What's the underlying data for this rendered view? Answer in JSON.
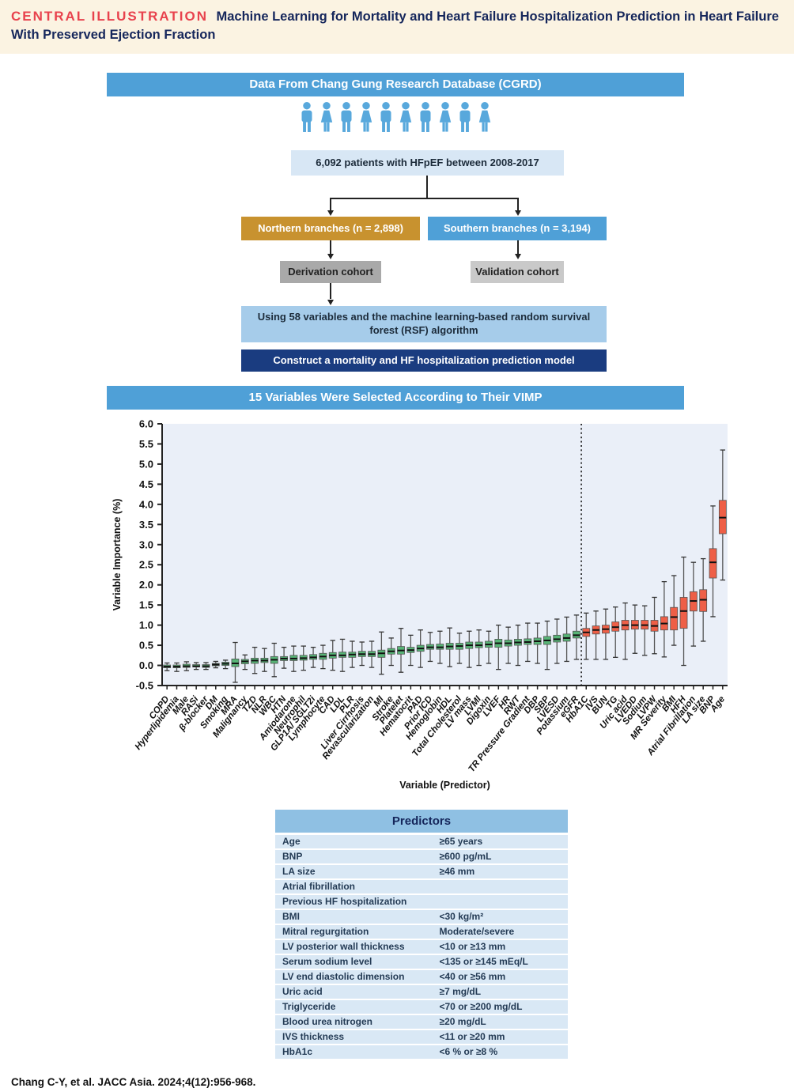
{
  "header": {
    "label": "CENTRAL ILLUSTRATION",
    "title": "Machine Learning for Mortality and Heart Failure Hospitalization Prediction in Heart Failure With Preserved Ejection Fraction"
  },
  "flowchart": {
    "source_title": "Data From Chang Gung Research Database (CGRD)",
    "people_icons": {
      "count": 10,
      "pattern": [
        "male",
        "female",
        "male",
        "female",
        "male",
        "female",
        "male",
        "female",
        "male",
        "female"
      ]
    },
    "patients_box": "6,092 patients with HFpEF between 2008-2017",
    "northern_box": "Northern branches (n = 2,898)",
    "southern_box": "Southern branches (n = 3,194)",
    "derivation_box": "Derivation cohort",
    "validation_box": "Validation cohort",
    "method_box": "Using 58 variables and the machine learning-based random survival forest (RSF) algorithm",
    "model_box": "Construct a mortality and HF hospitalization prediction model"
  },
  "chart_header": "15 Variables Were Selected According to Their VIMP",
  "chart_data": {
    "type": "boxplot",
    "title": "15 Variables Were Selected According to Their VIMP",
    "xlabel": "Variable (Predictor)",
    "ylabel": "Variable Importance (%)",
    "ylim": [
      -0.5,
      6.0
    ],
    "ytick_step": 0.5,
    "grid": false,
    "separator_after_index": 42,
    "unselected_color": "#57b476",
    "selected_color": "#ee5f47",
    "series": [
      {
        "name": "COPD",
        "lo": -0.13,
        "q1": -0.06,
        "med": -0.03,
        "q3": 0.01,
        "hi": 0.06,
        "selected": false
      },
      {
        "name": "Hyperlipidemia",
        "lo": -0.15,
        "q1": -0.06,
        "med": -0.03,
        "q3": 0.01,
        "hi": 0.06,
        "selected": false
      },
      {
        "name": "Male",
        "lo": -0.13,
        "q1": -0.05,
        "med": -0.02,
        "q3": 0.03,
        "hi": 0.09,
        "selected": false
      },
      {
        "name": "RASi",
        "lo": -0.1,
        "q1": -0.04,
        "med": -0.02,
        "q3": 0.02,
        "hi": 0.07,
        "selected": false
      },
      {
        "name": "β-blocker",
        "lo": -0.1,
        "q1": -0.05,
        "med": -0.02,
        "q3": 0.02,
        "hi": 0.07,
        "selected": false
      },
      {
        "name": "DM",
        "lo": -0.06,
        "q1": -0.01,
        "med": 0.02,
        "q3": 0.05,
        "hi": 0.1,
        "selected": false
      },
      {
        "name": "Smoking",
        "lo": -0.08,
        "q1": 0.0,
        "med": 0.04,
        "q3": 0.08,
        "hi": 0.13,
        "selected": false
      },
      {
        "name": "MRA",
        "lo": -0.42,
        "q1": -0.03,
        "med": 0.05,
        "q3": 0.16,
        "hi": 0.57,
        "selected": false
      },
      {
        "name": "Malignancy",
        "lo": -0.1,
        "q1": 0.04,
        "med": 0.1,
        "q3": 0.15,
        "hi": 0.26,
        "selected": false
      },
      {
        "name": "TZD",
        "lo": -0.2,
        "q1": 0.05,
        "med": 0.12,
        "q3": 0.18,
        "hi": 0.45,
        "selected": false
      },
      {
        "name": "NLR",
        "lo": -0.15,
        "q1": 0.07,
        "med": 0.12,
        "q3": 0.18,
        "hi": 0.42,
        "selected": false
      },
      {
        "name": "WBC",
        "lo": -0.28,
        "q1": 0.05,
        "med": 0.14,
        "q3": 0.22,
        "hi": 0.55,
        "selected": false
      },
      {
        "name": "HTN",
        "lo": -0.07,
        "q1": 0.12,
        "med": 0.17,
        "q3": 0.22,
        "hi": 0.45,
        "selected": false
      },
      {
        "name": "Amiodarone",
        "lo": -0.15,
        "q1": 0.12,
        "med": 0.17,
        "q3": 0.25,
        "hi": 0.48,
        "selected": false
      },
      {
        "name": "Neutrophil",
        "lo": -0.12,
        "q1": 0.13,
        "med": 0.18,
        "q3": 0.25,
        "hi": 0.48,
        "selected": false
      },
      {
        "name": "GLP1A/ SGLT2i",
        "lo": -0.05,
        "q1": 0.15,
        "med": 0.2,
        "q3": 0.27,
        "hi": 0.45,
        "selected": false
      },
      {
        "name": "Lymphocyte",
        "lo": -0.08,
        "q1": 0.15,
        "med": 0.22,
        "q3": 0.3,
        "hi": 0.5,
        "selected": false
      },
      {
        "name": "CAD",
        "lo": -0.12,
        "q1": 0.18,
        "med": 0.25,
        "q3": 0.32,
        "hi": 0.62,
        "selected": false
      },
      {
        "name": "LDL",
        "lo": -0.15,
        "q1": 0.2,
        "med": 0.25,
        "q3": 0.33,
        "hi": 0.65,
        "selected": false
      },
      {
        "name": "PLR",
        "lo": -0.05,
        "q1": 0.2,
        "med": 0.27,
        "q3": 0.33,
        "hi": 0.6,
        "selected": false
      },
      {
        "name": "Liver Cirrhosis",
        "lo": 0.0,
        "q1": 0.22,
        "med": 0.28,
        "q3": 0.35,
        "hi": 0.58,
        "selected": false
      },
      {
        "name": "Revascularization",
        "lo": -0.05,
        "q1": 0.22,
        "med": 0.28,
        "q3": 0.35,
        "hi": 0.6,
        "selected": false
      },
      {
        "name": "MI",
        "lo": -0.22,
        "q1": 0.2,
        "med": 0.3,
        "q3": 0.38,
        "hi": 0.83,
        "selected": false
      },
      {
        "name": "Stroke",
        "lo": 0.0,
        "q1": 0.28,
        "med": 0.35,
        "q3": 0.42,
        "hi": 0.68,
        "selected": false
      },
      {
        "name": "Platelet",
        "lo": -0.17,
        "q1": 0.28,
        "med": 0.37,
        "q3": 0.47,
        "hi": 0.92,
        "selected": false
      },
      {
        "name": "Hematocrit",
        "lo": 0.0,
        "q1": 0.32,
        "med": 0.38,
        "q3": 0.45,
        "hi": 0.75,
        "selected": false
      },
      {
        "name": "PAD",
        "lo": -0.05,
        "q1": 0.35,
        "med": 0.42,
        "q3": 0.5,
        "hi": 0.88,
        "selected": false
      },
      {
        "name": "Prior ICD",
        "lo": 0.1,
        "q1": 0.4,
        "med": 0.45,
        "q3": 0.52,
        "hi": 0.82,
        "selected": false
      },
      {
        "name": "Hemoglobin",
        "lo": 0.05,
        "q1": 0.4,
        "med": 0.45,
        "q3": 0.53,
        "hi": 0.85,
        "selected": false
      },
      {
        "name": "HDL",
        "lo": -0.03,
        "q1": 0.4,
        "med": 0.47,
        "q3": 0.55,
        "hi": 0.93,
        "selected": false
      },
      {
        "name": "Total Cholesterol",
        "lo": 0.05,
        "q1": 0.4,
        "med": 0.48,
        "q3": 0.55,
        "hi": 0.8,
        "selected": false
      },
      {
        "name": "LV mass",
        "lo": -0.05,
        "q1": 0.42,
        "med": 0.5,
        "q3": 0.58,
        "hi": 0.85,
        "selected": false
      },
      {
        "name": "LVMI",
        "lo": 0.0,
        "q1": 0.44,
        "med": 0.5,
        "q3": 0.58,
        "hi": 0.88,
        "selected": false
      },
      {
        "name": "Digoxin",
        "lo": 0.05,
        "q1": 0.45,
        "med": 0.52,
        "q3": 0.6,
        "hi": 0.85,
        "selected": false
      },
      {
        "name": "LVEF",
        "lo": -0.1,
        "q1": 0.45,
        "med": 0.55,
        "q3": 0.65,
        "hi": 1.0,
        "selected": false
      },
      {
        "name": "HR",
        "lo": 0.05,
        "q1": 0.48,
        "med": 0.55,
        "q3": 0.63,
        "hi": 0.95,
        "selected": false
      },
      {
        "name": "RWT",
        "lo": 0.0,
        "q1": 0.5,
        "med": 0.57,
        "q3": 0.65,
        "hi": 1.0,
        "selected": false
      },
      {
        "name": "TR Pressure Gradient",
        "lo": 0.1,
        "q1": 0.52,
        "med": 0.58,
        "q3": 0.66,
        "hi": 1.05,
        "selected": false
      },
      {
        "name": "DBP",
        "lo": 0.05,
        "q1": 0.52,
        "med": 0.6,
        "q3": 0.68,
        "hi": 1.05,
        "selected": false
      },
      {
        "name": "SBP",
        "lo": -0.1,
        "q1": 0.52,
        "med": 0.62,
        "q3": 0.72,
        "hi": 1.1,
        "selected": false
      },
      {
        "name": "LVESD",
        "lo": 0.05,
        "q1": 0.58,
        "med": 0.65,
        "q3": 0.75,
        "hi": 1.15,
        "selected": false
      },
      {
        "name": "Potassium",
        "lo": 0.1,
        "q1": 0.6,
        "med": 0.68,
        "q3": 0.78,
        "hi": 1.2,
        "selected": false
      },
      {
        "name": "eGFR",
        "lo": 0.15,
        "q1": 0.68,
        "med": 0.75,
        "q3": 0.85,
        "hi": 1.25,
        "selected": false
      },
      {
        "name": "HbA1C",
        "lo": 0.15,
        "q1": 0.72,
        "med": 0.82,
        "q3": 0.92,
        "hi": 1.3,
        "selected": true
      },
      {
        "name": "IVS",
        "lo": 0.15,
        "q1": 0.78,
        "med": 0.88,
        "q3": 0.98,
        "hi": 1.35,
        "selected": true
      },
      {
        "name": "BUN",
        "lo": 0.15,
        "q1": 0.8,
        "med": 0.9,
        "q3": 1.0,
        "hi": 1.4,
        "selected": true
      },
      {
        "name": "TG",
        "lo": 0.2,
        "q1": 0.85,
        "med": 0.95,
        "q3": 1.08,
        "hi": 1.45,
        "selected": true
      },
      {
        "name": "Uric acid",
        "lo": 0.15,
        "q1": 0.88,
        "med": 1.0,
        "q3": 1.12,
        "hi": 1.55,
        "selected": true
      },
      {
        "name": "LVEDD",
        "lo": 0.3,
        "q1": 0.9,
        "med": 1.0,
        "q3": 1.12,
        "hi": 1.5,
        "selected": true
      },
      {
        "name": "Sodium",
        "lo": 0.25,
        "q1": 0.9,
        "med": 1.0,
        "q3": 1.12,
        "hi": 1.48,
        "selected": true
      },
      {
        "name": "LVPW",
        "lo": 0.29,
        "q1": 0.85,
        "med": 0.98,
        "q3": 1.12,
        "hi": 1.69,
        "selected": true
      },
      {
        "name": "MR Severity",
        "lo": 0.21,
        "q1": 0.88,
        "med": 1.04,
        "q3": 1.21,
        "hi": 2.08,
        "selected": true
      },
      {
        "name": "BMI",
        "lo": 0.5,
        "q1": 0.88,
        "med": 1.2,
        "q3": 1.44,
        "hi": 2.23,
        "selected": true
      },
      {
        "name": "HFH",
        "lo": 0.0,
        "q1": 0.92,
        "med": 1.35,
        "q3": 1.69,
        "hi": 2.69,
        "selected": true
      },
      {
        "name": "Atrial Fibrillation",
        "lo": 0.48,
        "q1": 1.35,
        "med": 1.6,
        "q3": 1.83,
        "hi": 2.56,
        "selected": true
      },
      {
        "name": "LA size",
        "lo": 0.6,
        "q1": 1.34,
        "med": 1.63,
        "q3": 1.88,
        "hi": 2.65,
        "selected": true
      },
      {
        "name": "BNP",
        "lo": 1.21,
        "q1": 2.17,
        "med": 2.56,
        "q3": 2.9,
        "hi": 3.96,
        "selected": true
      },
      {
        "name": "Age",
        "lo": 2.12,
        "q1": 3.27,
        "med": 3.67,
        "q3": 4.1,
        "hi": 5.35,
        "selected": true
      }
    ]
  },
  "table": {
    "title": "Predictors",
    "rows": [
      {
        "predictor": "Age",
        "cutoff": "≥65 years"
      },
      {
        "predictor": "BNP",
        "cutoff": "≥600 pg/mL"
      },
      {
        "predictor": "LA size",
        "cutoff": "≥46 mm"
      },
      {
        "predictor": "Atrial fibrillation",
        "cutoff": ""
      },
      {
        "predictor": "Previous HF hospitalization",
        "cutoff": ""
      },
      {
        "predictor": "BMI",
        "cutoff": "<30 kg/m²"
      },
      {
        "predictor": "Mitral regurgitation",
        "cutoff": "Moderate/severe"
      },
      {
        "predictor": "LV posterior wall thickness",
        "cutoff": "<10 or ≥13 mm"
      },
      {
        "predictor": "Serum sodium level",
        "cutoff": "<135 or ≥145 mEq/L"
      },
      {
        "predictor": "LV end diastolic dimension",
        "cutoff": "<40 or ≥56 mm"
      },
      {
        "predictor": "Uric acid",
        "cutoff": "≥7 mg/dL"
      },
      {
        "predictor": "Triglyceride",
        "cutoff": "<70 or ≥200 mg/dL"
      },
      {
        "predictor": "Blood urea nitrogen",
        "cutoff": "≥20 mg/dL"
      },
      {
        "predictor": "IVS thickness",
        "cutoff": "<11 or ≥20 mm"
      },
      {
        "predictor": "HbA1c",
        "cutoff": "<6 % or ≥8 %"
      }
    ]
  },
  "citation": "Chang C-Y, et al. JACC Asia. 2024;4(12):956-968.",
  "colors": {
    "banner_bg": "#fbf3e2",
    "banner_label": "#e8424d",
    "banner_title": "#15265b",
    "blue_bar": "#4fa0d7",
    "people": "#58a8dc",
    "patients_box_bg": "#d8e7f5",
    "northern_bg": "#c8922f",
    "southern_bg": "#4fa0d7",
    "derivation_bg": "#a9a9a9",
    "validation_bg": "#c9c9c9",
    "method_bg": "#a6ccea",
    "model_bg": "#1a3c80",
    "chart_bg": "#eaeff8",
    "box_green": "#57b476",
    "box_red": "#ee5f47",
    "table_header_bg": "#8fc0e3",
    "table_row_bg": "#d9e8f5"
  }
}
